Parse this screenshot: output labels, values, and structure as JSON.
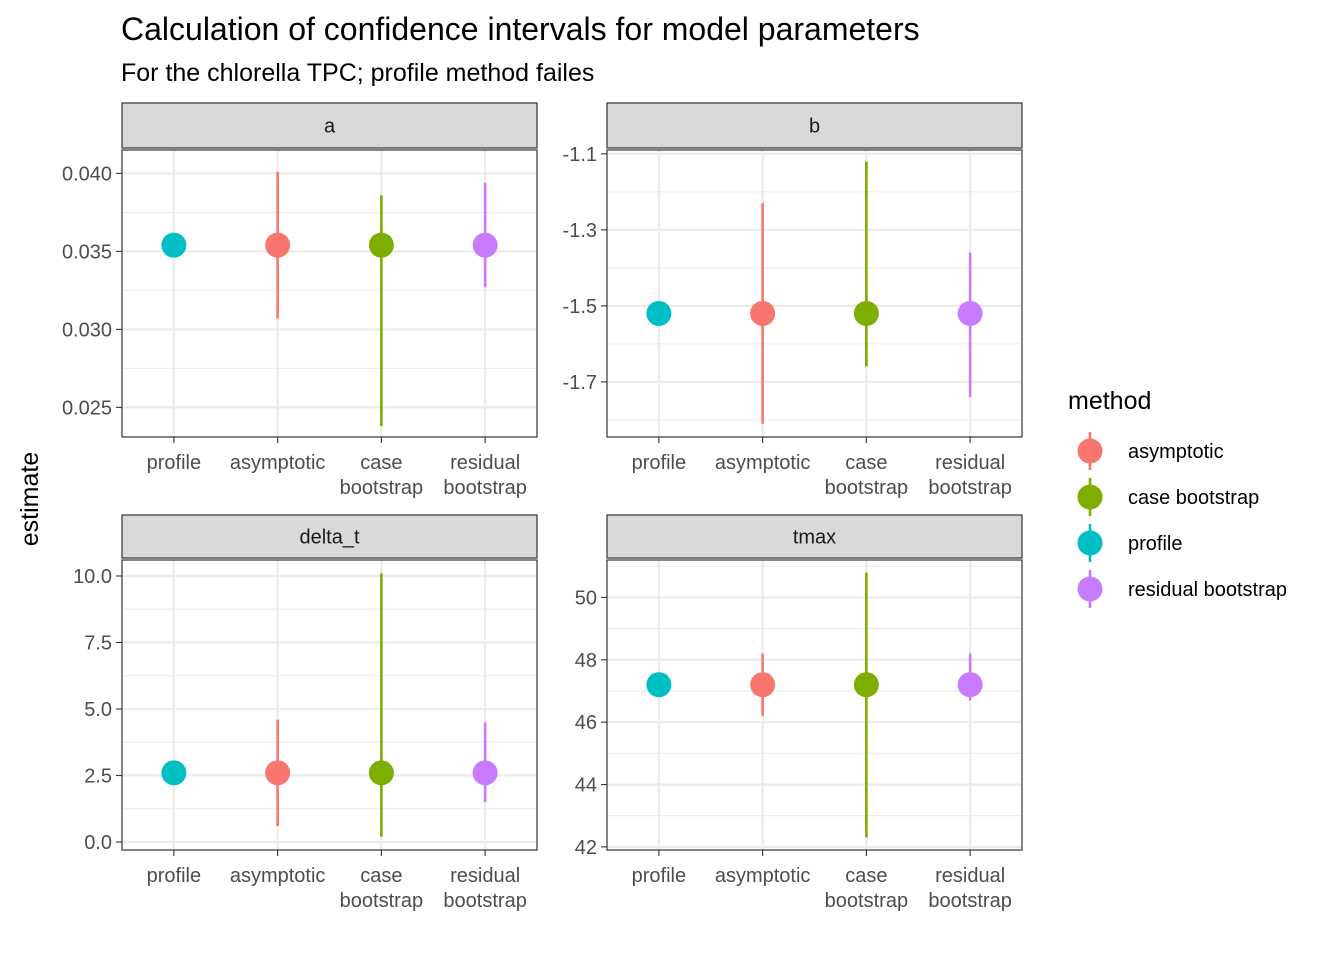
{
  "chart_data": {
    "type": "scatter",
    "title": "Calculation of confidence intervals for model parameters",
    "subtitle": "For the chlorella TPC; profile method failes",
    "ylabel": "estimate",
    "categories": [
      "profile",
      "asymptotic",
      "case\nbootstrap",
      "residual\nbootstrap"
    ],
    "legend": {
      "title": "method",
      "position": "right",
      "entries": [
        {
          "name": "asymptotic",
          "color": "#F8766D"
        },
        {
          "name": "case bootstrap",
          "color": "#7CAE00"
        },
        {
          "name": "profile",
          "color": "#00BFC4"
        },
        {
          "name": "residual bootstrap",
          "color": "#C77CFF"
        }
      ]
    },
    "facets": [
      {
        "name": "a",
        "ylim": [
          0.0231,
          0.0415
        ],
        "yticks": [
          0.025,
          0.03,
          0.035,
          0.04
        ],
        "ytick_labels": [
          "0.025",
          "0.030",
          "0.035",
          "0.040"
        ],
        "points": [
          {
            "method": "profile",
            "estimate": 0.0354,
            "lower": null,
            "upper": null
          },
          {
            "method": "asymptotic",
            "estimate": 0.0354,
            "lower": 0.0307,
            "upper": 0.0401
          },
          {
            "method": "case bootstrap",
            "estimate": 0.0354,
            "lower": 0.0238,
            "upper": 0.0386
          },
          {
            "method": "residual bootstrap",
            "estimate": 0.0354,
            "lower": 0.0327,
            "upper": 0.0394
          }
        ]
      },
      {
        "name": "b",
        "ylim": [
          -1.845,
          -1.09
        ],
        "yticks": [
          -1.7,
          -1.5,
          -1.3,
          -1.1
        ],
        "ytick_labels": [
          "-1.7",
          "-1.5",
          "-1.3",
          "-1.1"
        ],
        "points": [
          {
            "method": "profile",
            "estimate": -1.52,
            "lower": null,
            "upper": null
          },
          {
            "method": "asymptotic",
            "estimate": -1.52,
            "lower": -1.81,
            "upper": -1.23
          },
          {
            "method": "case bootstrap",
            "estimate": -1.52,
            "lower": -1.66,
            "upper": -1.12
          },
          {
            "method": "residual bootstrap",
            "estimate": -1.52,
            "lower": -1.74,
            "upper": -1.36
          }
        ]
      },
      {
        "name": "delta_t",
        "ylim": [
          -0.3,
          10.6
        ],
        "yticks": [
          0.0,
          2.5,
          5.0,
          7.5,
          10.0
        ],
        "ytick_labels": [
          "0.0",
          "2.5",
          "5.0",
          "7.5",
          "10.0"
        ],
        "points": [
          {
            "method": "profile",
            "estimate": 2.6,
            "lower": null,
            "upper": null
          },
          {
            "method": "asymptotic",
            "estimate": 2.6,
            "lower": 0.6,
            "upper": 4.6
          },
          {
            "method": "case bootstrap",
            "estimate": 2.6,
            "lower": 0.2,
            "upper": 10.1
          },
          {
            "method": "residual bootstrap",
            "estimate": 2.6,
            "lower": 1.5,
            "upper": 4.5
          }
        ]
      },
      {
        "name": "tmax",
        "ylim": [
          41.9,
          51.2
        ],
        "yticks": [
          42,
          44,
          46,
          48,
          50
        ],
        "ytick_labels": [
          "42",
          "44",
          "46",
          "48",
          "50"
        ],
        "points": [
          {
            "method": "profile",
            "estimate": 47.2,
            "lower": null,
            "upper": null
          },
          {
            "method": "asymptotic",
            "estimate": 47.2,
            "lower": 46.2,
            "upper": 48.2
          },
          {
            "method": "case bootstrap",
            "estimate": 47.2,
            "lower": 42.3,
            "upper": 50.8
          },
          {
            "method": "residual bootstrap",
            "estimate": 47.2,
            "lower": 46.7,
            "upper": 48.2
          }
        ]
      }
    ]
  }
}
